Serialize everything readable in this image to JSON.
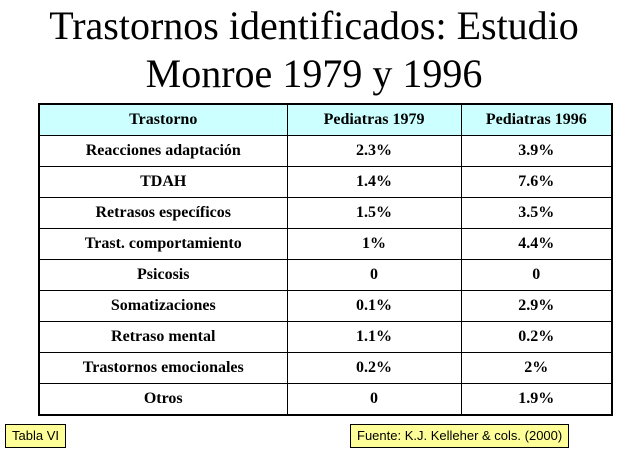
{
  "title": {
    "line1": "Trastornos identificados: Estudio",
    "line2": "Monroe 1979 y 1996"
  },
  "table": {
    "headers": [
      "Trastorno",
      "Pediatras 1979",
      "Pediatras 1996"
    ],
    "rows": [
      [
        "Reacciones adaptación",
        "2.3%",
        "3.9%"
      ],
      [
        "TDAH",
        "1.4%",
        "7.6%"
      ],
      [
        "Retrasos específicos",
        "1.5%",
        "3.5%"
      ],
      [
        "Trast. comportamiento",
        "1%",
        "4.4%"
      ],
      [
        "Psicosis",
        "0",
        "0"
      ],
      [
        "Somatizaciones",
        "0.1%",
        "2.9%"
      ],
      [
        "Retraso mental",
        "1.1%",
        "0.2%"
      ],
      [
        "Trastornos emocionales",
        "0.2%",
        "2%"
      ],
      [
        "Otros",
        "0",
        "1.9%"
      ]
    ]
  },
  "notes": {
    "left": "Tabla VI",
    "right": "Fuente: K.J. Kelleher & cols. (2000)"
  },
  "colors": {
    "header_bg": "#ccffff",
    "note_bg": "#ffff99"
  }
}
